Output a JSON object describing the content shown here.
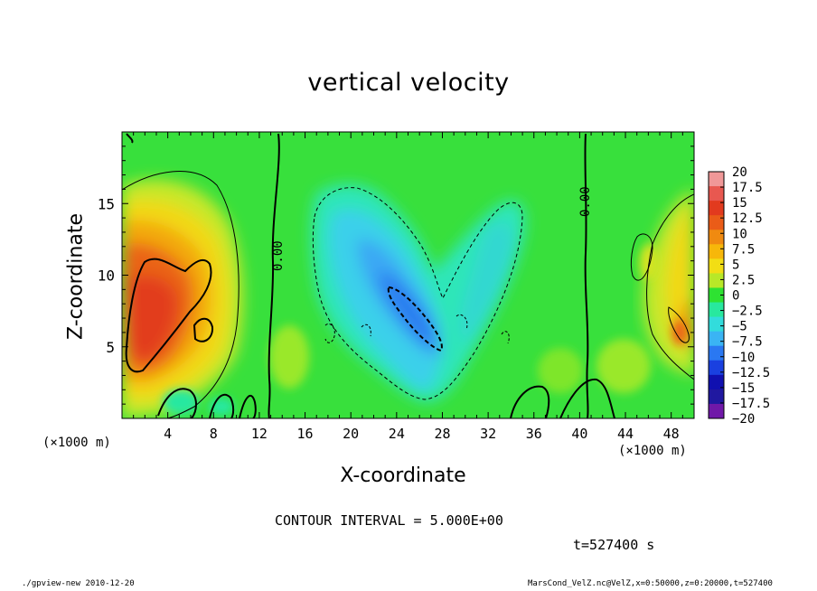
{
  "chart_data": {
    "type": "heatmap",
    "title": "vertical velocity",
    "xlabel": "X-coordinate",
    "ylabel": "Z-coordinate",
    "x_unit_label": "(×1000 m)",
    "xlim": [
      0,
      50
    ],
    "ylim": [
      0,
      20
    ],
    "x_ticks": [
      4,
      8,
      12,
      16,
      20,
      24,
      28,
      32,
      36,
      40,
      44,
      48
    ],
    "y_ticks": [
      5,
      10,
      15
    ],
    "colorbar": {
      "levels": [
        20,
        17.5,
        15,
        12.5,
        10,
        7.5,
        5,
        2.5,
        0,
        -2.5,
        -5,
        -7.5,
        -10,
        -12.5,
        -15,
        -17.5,
        -20
      ],
      "colors": [
        "#f09898",
        "#e85850",
        "#e23a1e",
        "#ea5c18",
        "#f08a10",
        "#f7b70a",
        "#f2de14",
        "#b8e828",
        "#2ee232",
        "#28e89e",
        "#32dcdc",
        "#3ab4f4",
        "#2a78f2",
        "#1a40e0",
        "#1010b0",
        "#2018a0",
        "#7018a8"
      ]
    },
    "contour_labels": [
      "0.00",
      "0.00"
    ],
    "contour_interval": "CONTOUR INTERVAL = 5.000E+00",
    "time": "t=527400 s"
  },
  "footer": {
    "left": "./gpview-new  2010-12-20",
    "right": "MarsCond_VelZ.nc@VelZ,x=0:50000,z=0:20000,t=527400"
  },
  "colors": {
    "background": "#ffffff",
    "field_base": "#34e03a"
  }
}
